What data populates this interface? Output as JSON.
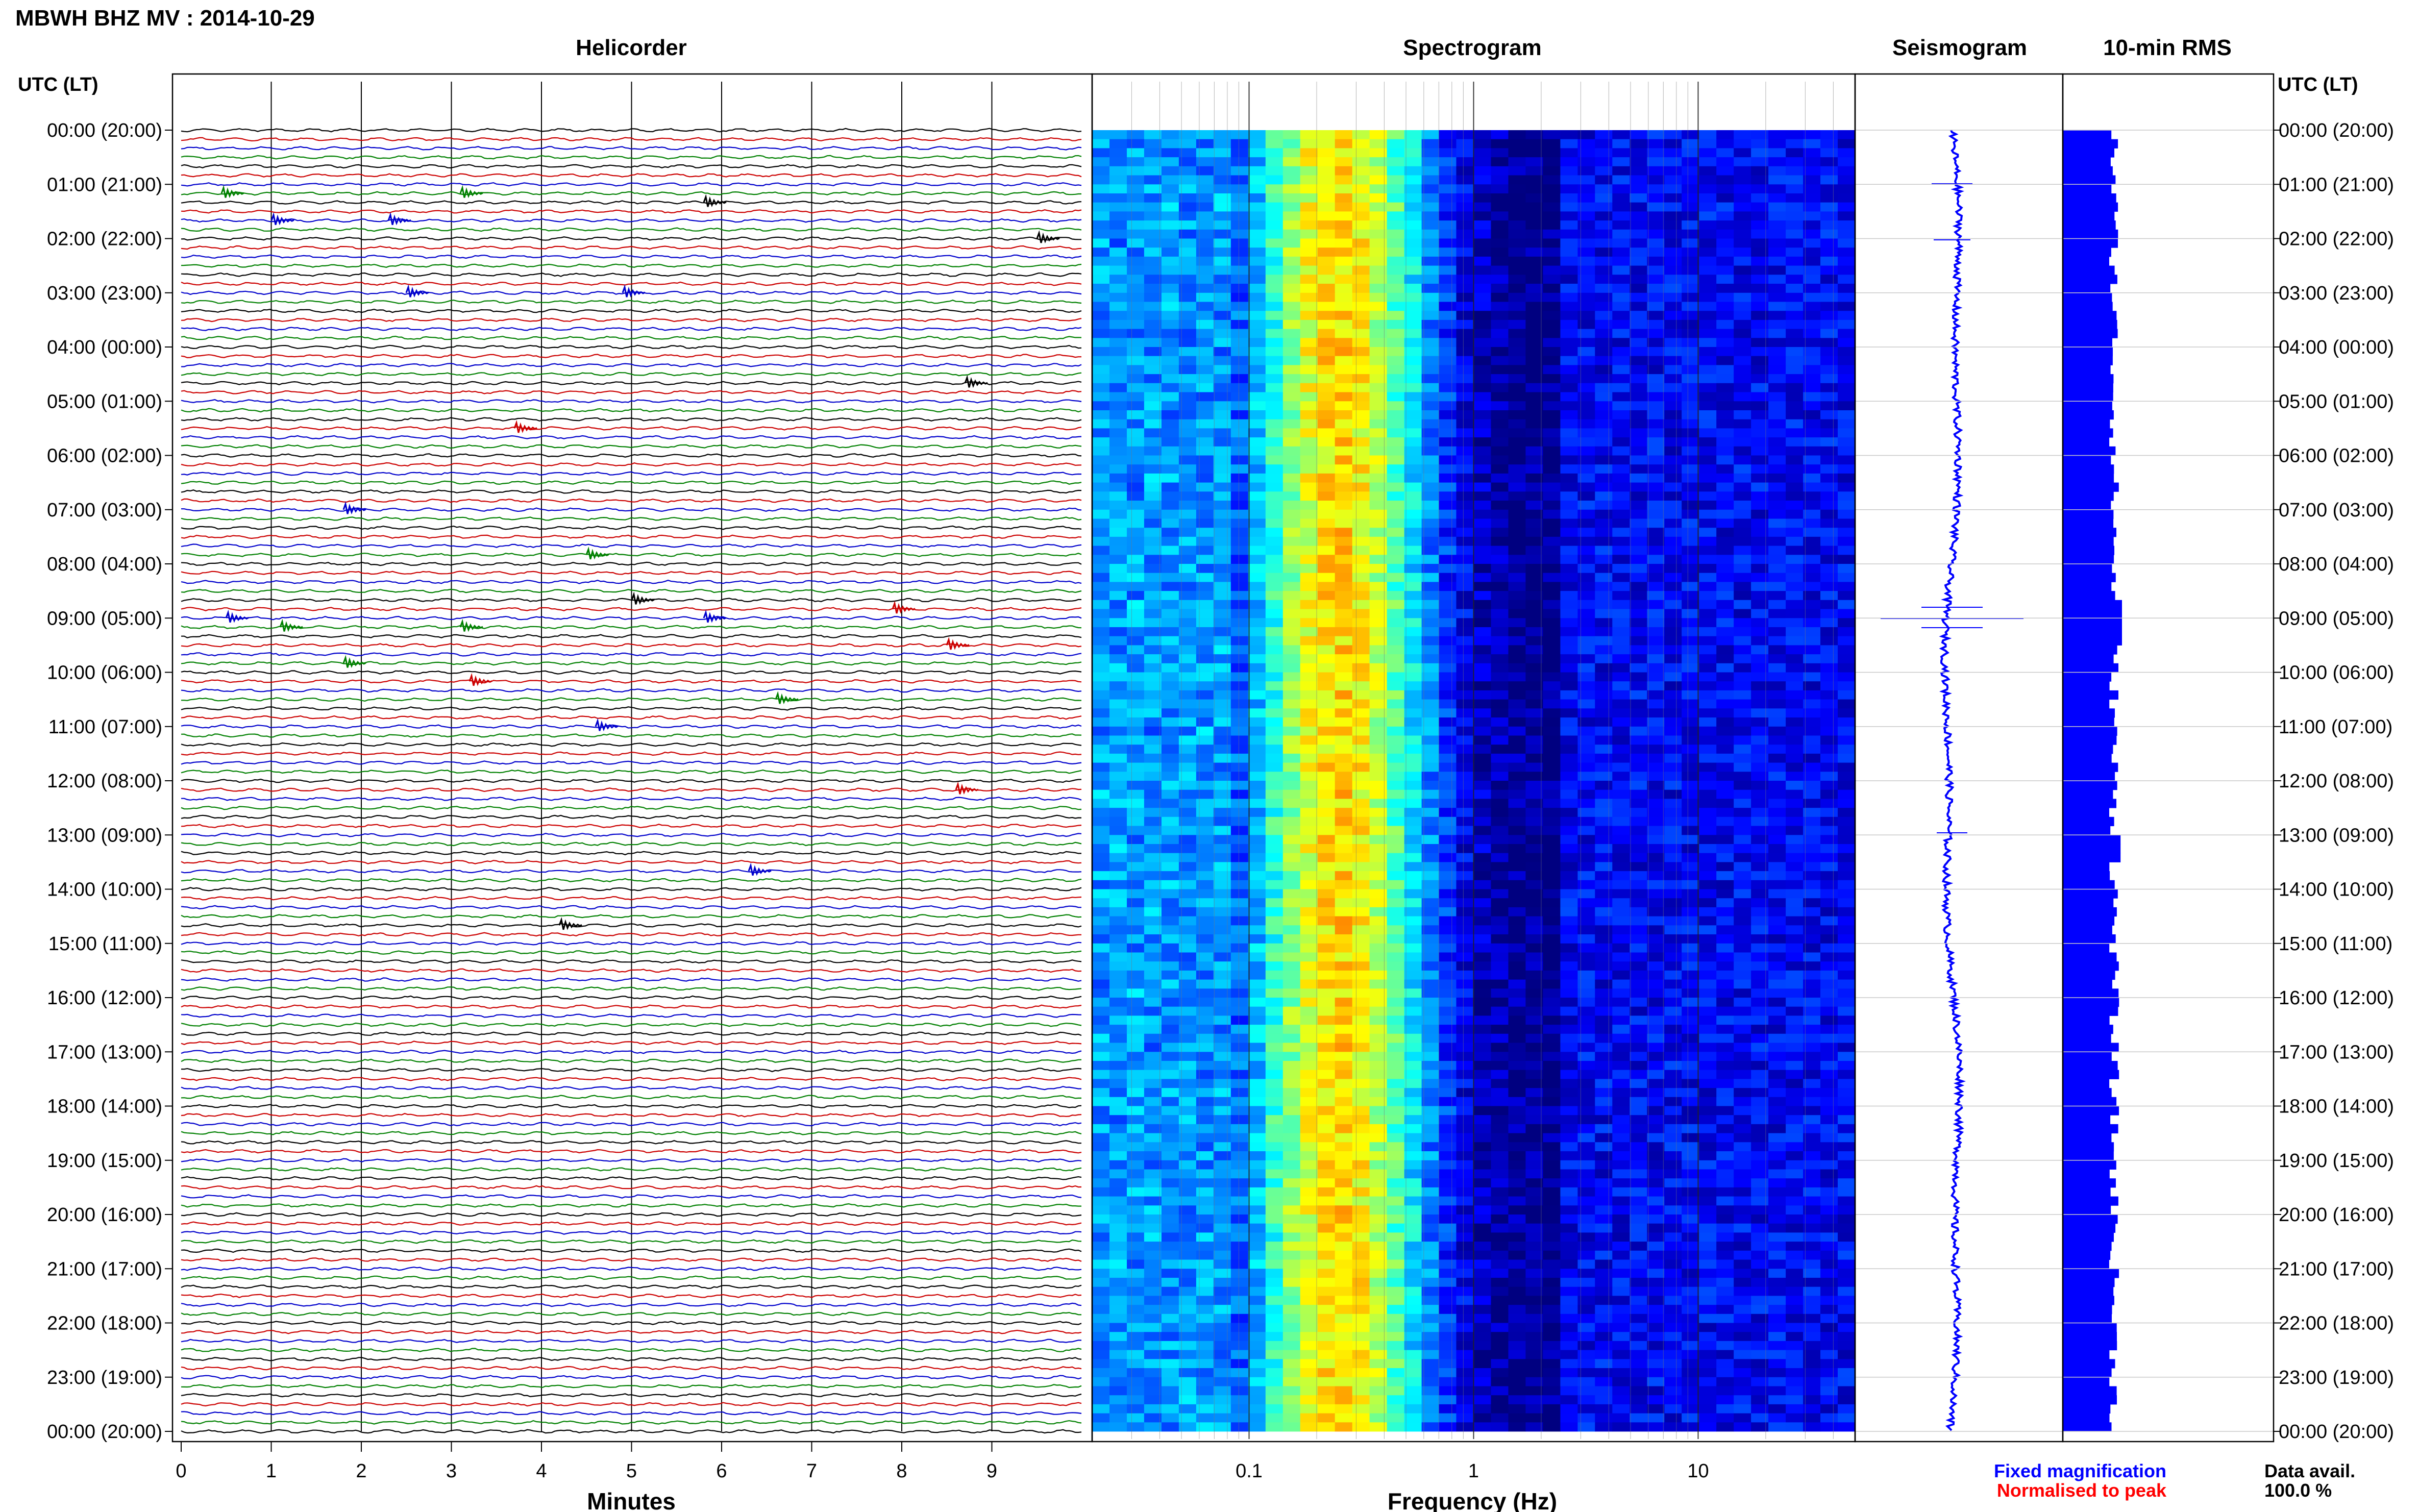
{
  "header": {
    "title": "MBWH BHZ MV : 2014-10-29",
    "utc_label_left": "UTC (LT)",
    "utc_label_right": "UTC (LT)"
  },
  "panels": {
    "helicorder": {
      "title": "Helicorder",
      "xlabel": "Minutes",
      "xticks": [
        "0",
        "1",
        "2",
        "3",
        "4",
        "5",
        "6",
        "7",
        "8",
        "9"
      ]
    },
    "spectrogram": {
      "title": "Spectrogram",
      "xlabel": "Frequency (Hz)",
      "xticks": [
        "0.1",
        "1",
        "10"
      ]
    },
    "seismogram": {
      "title": "Seismogram"
    },
    "rms": {
      "title": "10-min RMS"
    }
  },
  "footer": {
    "fixed_magnification": "Fixed magnification",
    "normalised_to_peak": "Normalised to peak",
    "data_avail_label": "Data avail.",
    "data_avail_value": "100.0 %"
  },
  "colors": {
    "trace_cycle": [
      "#000000",
      "#cc0000",
      "#0000cc",
      "#008000"
    ],
    "fixed_magnification": "#0000ff",
    "normalised_to_peak": "#ff0000",
    "rms_bar": "#0000ff",
    "seismogram": "#0000ff",
    "spectrogram_background": "#000080"
  },
  "chart_data": [
    {
      "type": "heatmap",
      "title": "Helicorder",
      "xlabel": "Minutes",
      "x_range": [
        0,
        10
      ],
      "y_ticks": [
        "00:00 (20:00)",
        "01:00 (21:00)",
        "02:00 (22:00)",
        "03:00 (23:00)",
        "04:00 (00:00)",
        "05:00 (01:00)",
        "06:00 (02:00)",
        "07:00 (03:00)",
        "08:00 (04:00)",
        "09:00 (05:00)",
        "10:00 (06:00)",
        "11:00 (07:00)",
        "12:00 (08:00)",
        "13:00 (09:00)",
        "14:00 (10:00)",
        "15:00 (11:00)",
        "16:00 (12:00)",
        "17:00 (13:00)",
        "18:00 (14:00)",
        "19:00 (15:00)",
        "20:00 (16:00)",
        "21:00 (17:00)",
        "22:00 (18:00)",
        "23:00 (19:00)",
        "00:00 (20:00)"
      ],
      "traces_per_hour": 6,
      "trace_minutes": 10
    },
    {
      "type": "heatmap",
      "title": "Spectrogram",
      "xlabel": "Frequency (Hz)",
      "x_scale": "log",
      "x_range": [
        0.02,
        50
      ],
      "x_ticks": [
        0.1,
        1,
        10
      ],
      "peak_frequency_hz": 0.25
    },
    {
      "type": "line",
      "title": "Seismogram"
    },
    {
      "type": "bar",
      "title": "10-min RMS",
      "orientation": "horizontal",
      "bins": 144,
      "relative_scale": [
        0,
        1
      ]
    }
  ]
}
